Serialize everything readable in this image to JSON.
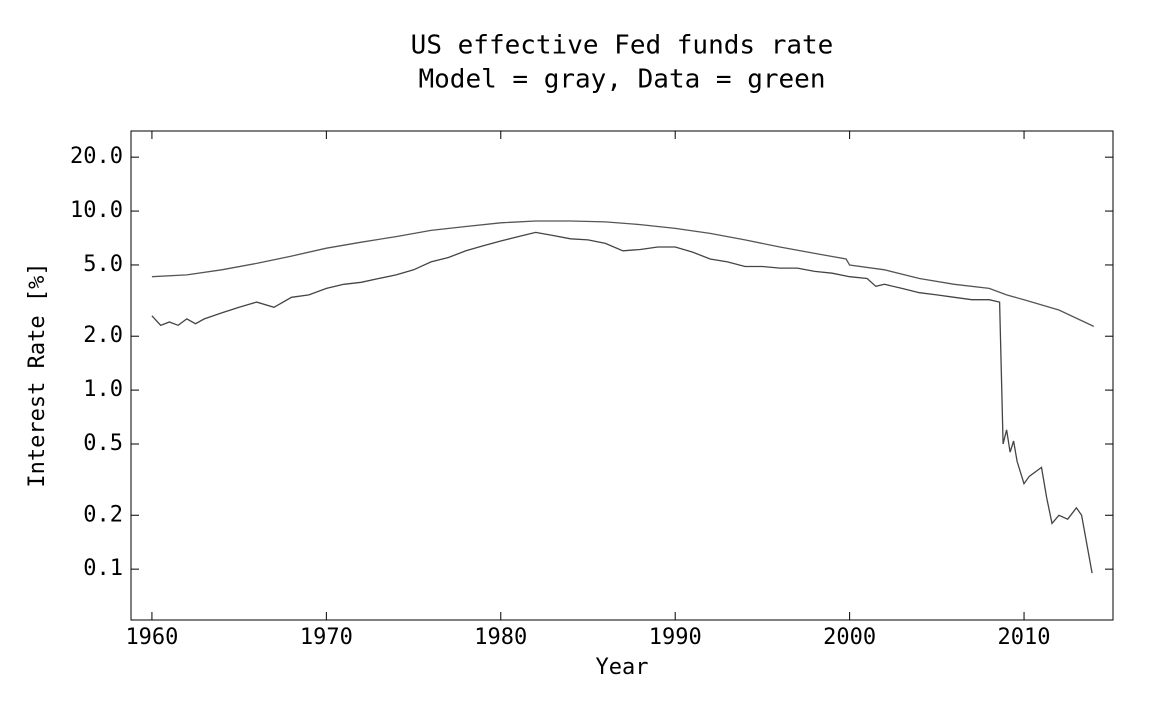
{
  "chart_data": {
    "type": "line",
    "title": "US effective Fed funds rate",
    "subtitle": "Model = gray, Data = green",
    "xlabel": "Year",
    "ylabel": "Interest Rate [%]",
    "log_y": true,
    "xlim": [
      1958.8,
      2015.1
    ],
    "ylim": [
      0.052,
      28
    ],
    "xticks": [
      1960,
      1970,
      1980,
      1990,
      2000,
      2010
    ],
    "yticks": [
      {
        "value": 20,
        "label": "20.0"
      },
      {
        "value": 10,
        "label": "10.0"
      },
      {
        "value": 5,
        "label": "5.0"
      },
      {
        "value": 2,
        "label": "2.0"
      },
      {
        "value": 1,
        "label": "1.0"
      },
      0.5,
      0.2,
      0.1
    ],
    "series": [
      {
        "color": "#555555",
        "x": [
          1960,
          1962,
          1964,
          1966,
          1968,
          1970,
          1972,
          1974,
          1976,
          1978,
          1980,
          1982,
          1984,
          1986,
          1988,
          1990,
          1992,
          1994,
          1996,
          1998,
          1999.8,
          2000,
          2002,
          2004,
          2006,
          2008,
          2009,
          2010,
          2012,
          2014
        ],
        "values": [
          4.3,
          4.4,
          4.7,
          5.1,
          5.6,
          6.2,
          6.7,
          7.2,
          7.8,
          8.2,
          8.6,
          8.8,
          8.8,
          8.7,
          8.4,
          8.0,
          7.5,
          6.9,
          6.3,
          5.8,
          5.4,
          5.0,
          4.7,
          4.2,
          3.9,
          3.7,
          3.4,
          3.2,
          2.8,
          2.27
        ]
      },
      {
        "color": "#444444",
        "x": [
          1960,
          1960.5,
          1961,
          1961.5,
          1962,
          1962.5,
          1963,
          1964,
          1965,
          1966,
          1967,
          1968,
          1969,
          1970,
          1971,
          1972,
          1973,
          1974,
          1975,
          1976,
          1977,
          1978,
          1979,
          1980,
          1981,
          1982,
          1983,
          1984,
          1985,
          1986,
          1987,
          1988,
          1989,
          1990,
          1991,
          1992,
          1993,
          1994,
          1995,
          1996,
          1997,
          1998,
          1999,
          2000,
          2001,
          2001.5,
          2002,
          2003,
          2004,
          2005,
          2006,
          2007,
          2008,
          2008.6,
          2008.8,
          2009,
          2009.2,
          2009.4,
          2009.6,
          2010,
          2010.3,
          2011,
          2011.3,
          2011.6,
          2012,
          2012.5,
          2013,
          2013.3,
          2013.9
        ],
        "values": [
          2.6,
          2.3,
          2.4,
          2.3,
          2.5,
          2.35,
          2.5,
          2.7,
          2.9,
          3.1,
          2.9,
          3.3,
          3.4,
          3.7,
          3.9,
          4.0,
          4.2,
          4.4,
          4.7,
          5.2,
          5.5,
          6.0,
          6.4,
          6.8,
          7.2,
          7.6,
          7.3,
          7.0,
          6.9,
          6.6,
          6.0,
          6.1,
          6.3,
          6.3,
          5.9,
          5.4,
          5.2,
          4.9,
          4.9,
          4.8,
          4.8,
          4.6,
          4.5,
          4.3,
          4.2,
          3.8,
          3.9,
          3.7,
          3.5,
          3.4,
          3.3,
          3.2,
          3.2,
          3.1,
          0.5,
          0.6,
          0.45,
          0.52,
          0.4,
          0.3,
          0.33,
          0.37,
          0.25,
          0.18,
          0.2,
          0.19,
          0.22,
          0.2,
          0.095
        ]
      }
    ]
  }
}
